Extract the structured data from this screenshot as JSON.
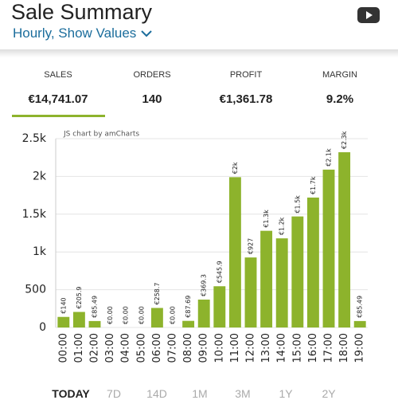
{
  "header": {
    "title": "Sale Summary",
    "subtitle": "Hourly, Show Values"
  },
  "stats": [
    {
      "label": "SALES",
      "value": "€14,741.07"
    },
    {
      "label": "ORDERS",
      "value": "140"
    },
    {
      "label": "PROFIT",
      "value": "€1,361.78"
    },
    {
      "label": "MARGIN",
      "value": "9.2%"
    }
  ],
  "chart_data": {
    "type": "bar",
    "credit": "JS chart by amCharts",
    "categories": [
      "00:00",
      "01:00",
      "02:00",
      "03:00",
      "04:00",
      "05:00",
      "06:00",
      "07:00",
      "08:00",
      "09:00",
      "10:00",
      "11:00",
      "12:00",
      "13:00",
      "14:00",
      "15:00",
      "16:00",
      "17:00",
      "18:00",
      "19:00"
    ],
    "values": [
      140,
      205.9,
      85.49,
      0,
      0,
      0,
      258.7,
      0,
      87.69,
      369.3,
      545.9,
      1990,
      927,
      1280,
      1180,
      1470,
      1720,
      2090,
      2320,
      85.49
    ],
    "value_labels": [
      "€140",
      "€205.9",
      "€85.49",
      "€0.00",
      "€0.00",
      "€0.00",
      "€258.7",
      "€0.00",
      "€87.69",
      "€369.3",
      "€545.9",
      "€2k",
      "€927",
      "€1.3k",
      "€1.2k",
      "€1.5k",
      "€1.7k",
      "€2.1k",
      "€2.3k",
      "€85.49"
    ],
    "color": "#8db32c",
    "ylim": [
      0,
      2500
    ],
    "yticks": [
      0,
      500,
      {
        "value": 1000,
        "label": "1k"
      },
      {
        "value": 1500,
        "label": "1.5k"
      },
      {
        "value": 2000,
        "label": "2k"
      },
      {
        "value": 2500,
        "label": "2.5k"
      }
    ],
    "grid": true
  },
  "tabs": [
    "TODAY",
    "7D",
    "14D",
    "1M",
    "3M",
    "1Y",
    "2Y"
  ]
}
